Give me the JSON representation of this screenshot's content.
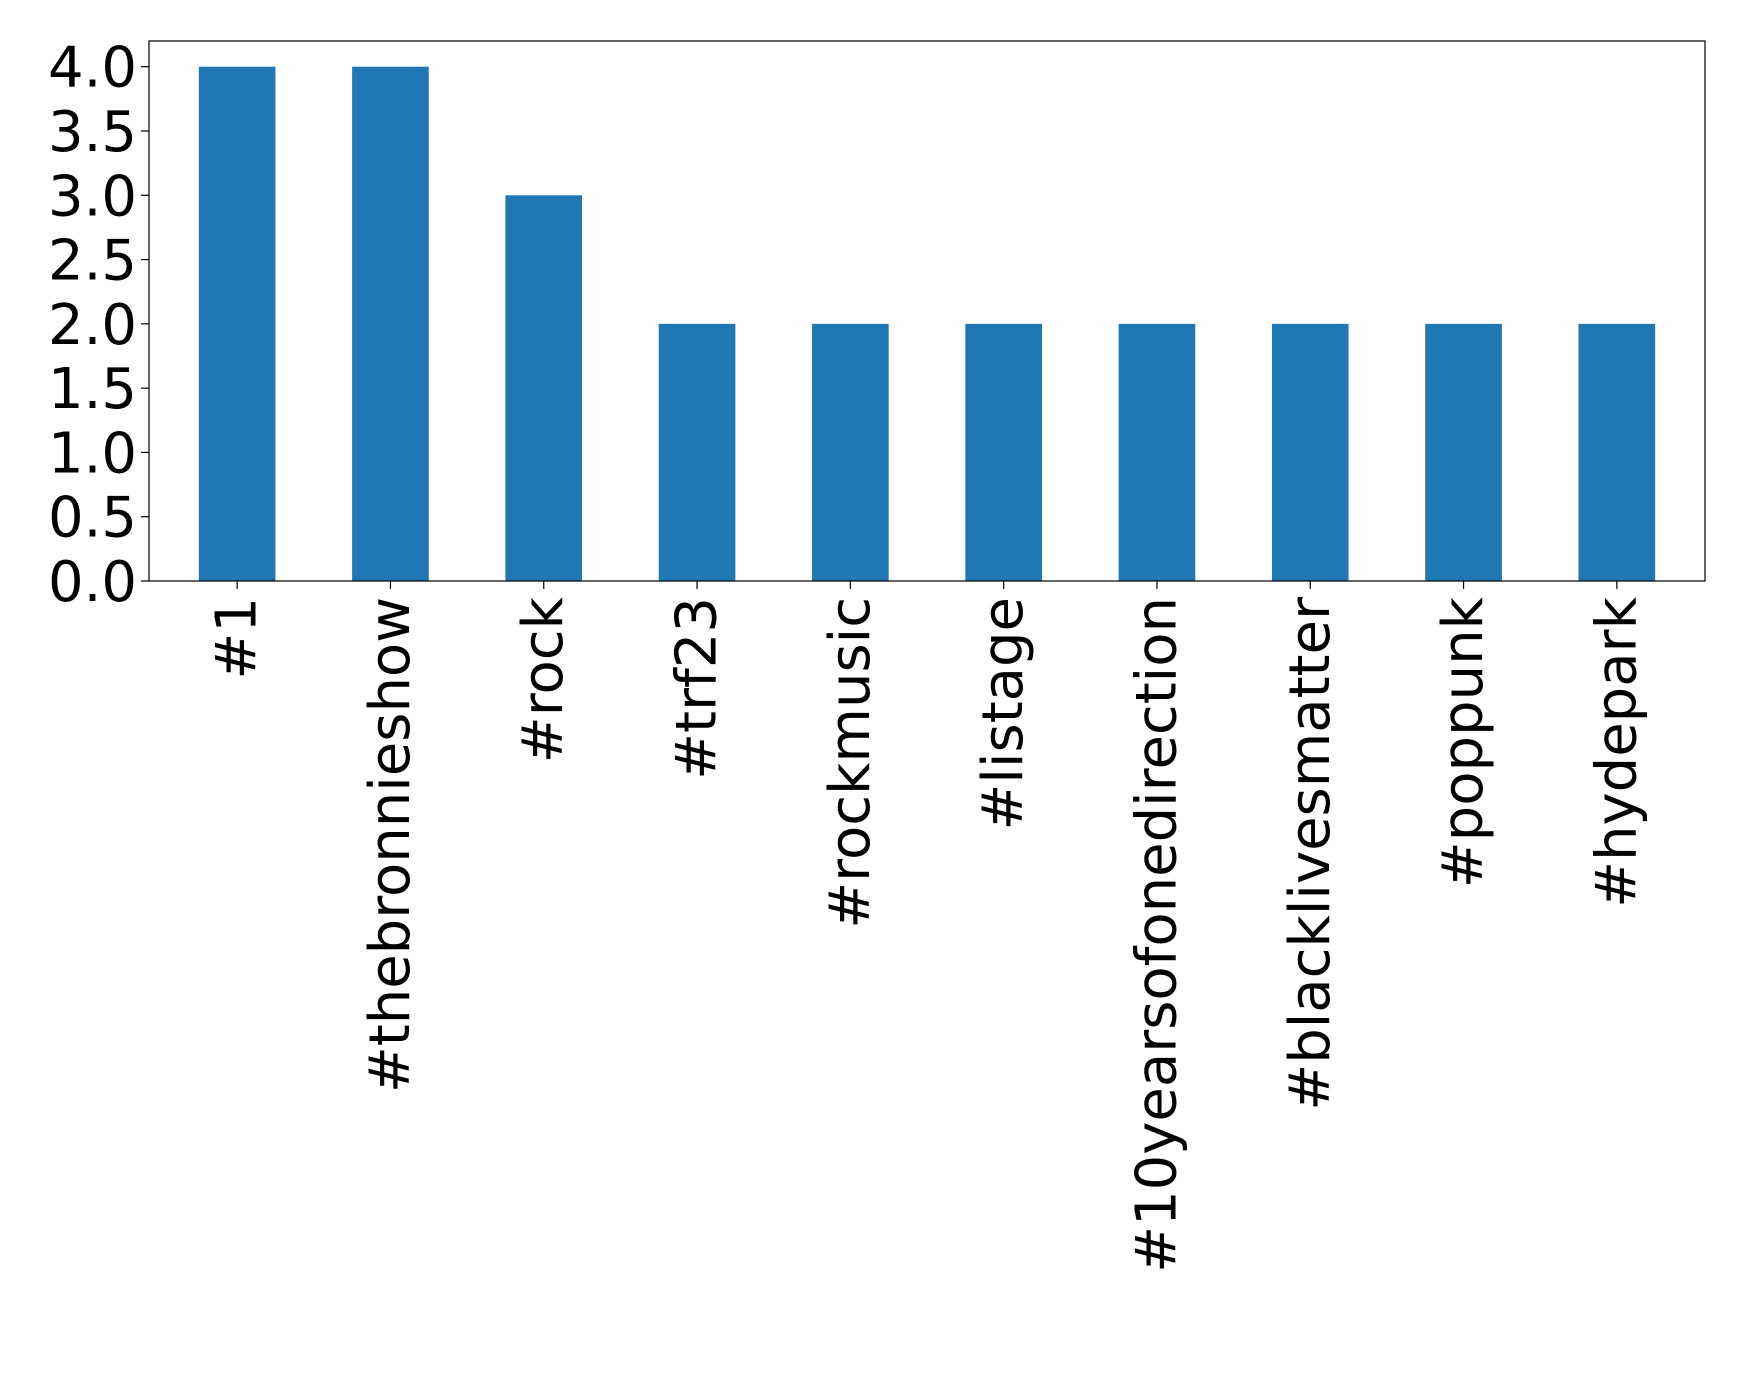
{
  "chart_data": {
    "type": "bar",
    "categories": [
      "#1",
      "#thebronnieshow",
      "#rock",
      "#trf23",
      "#rockmusic",
      "#listage",
      "#10yearsofonedirection",
      "#blacklivesmatter",
      "#poppunk",
      "#hydepark"
    ],
    "values": [
      4,
      4,
      3,
      2,
      2,
      2,
      2,
      2,
      2,
      2
    ],
    "ylim": [
      0,
      4.2
    ],
    "yticks": [
      0.0,
      0.5,
      1.0,
      1.5,
      2.0,
      2.5,
      3.0,
      3.5,
      4.0
    ],
    "ytick_labels": [
      "0.0",
      "0.5",
      "1.0",
      "1.5",
      "2.0",
      "2.5",
      "3.0",
      "3.5",
      "4.0"
    ],
    "grid": false,
    "legend": false,
    "colors": {
      "bar": "#1f77b4",
      "axis": "#000000"
    }
  }
}
